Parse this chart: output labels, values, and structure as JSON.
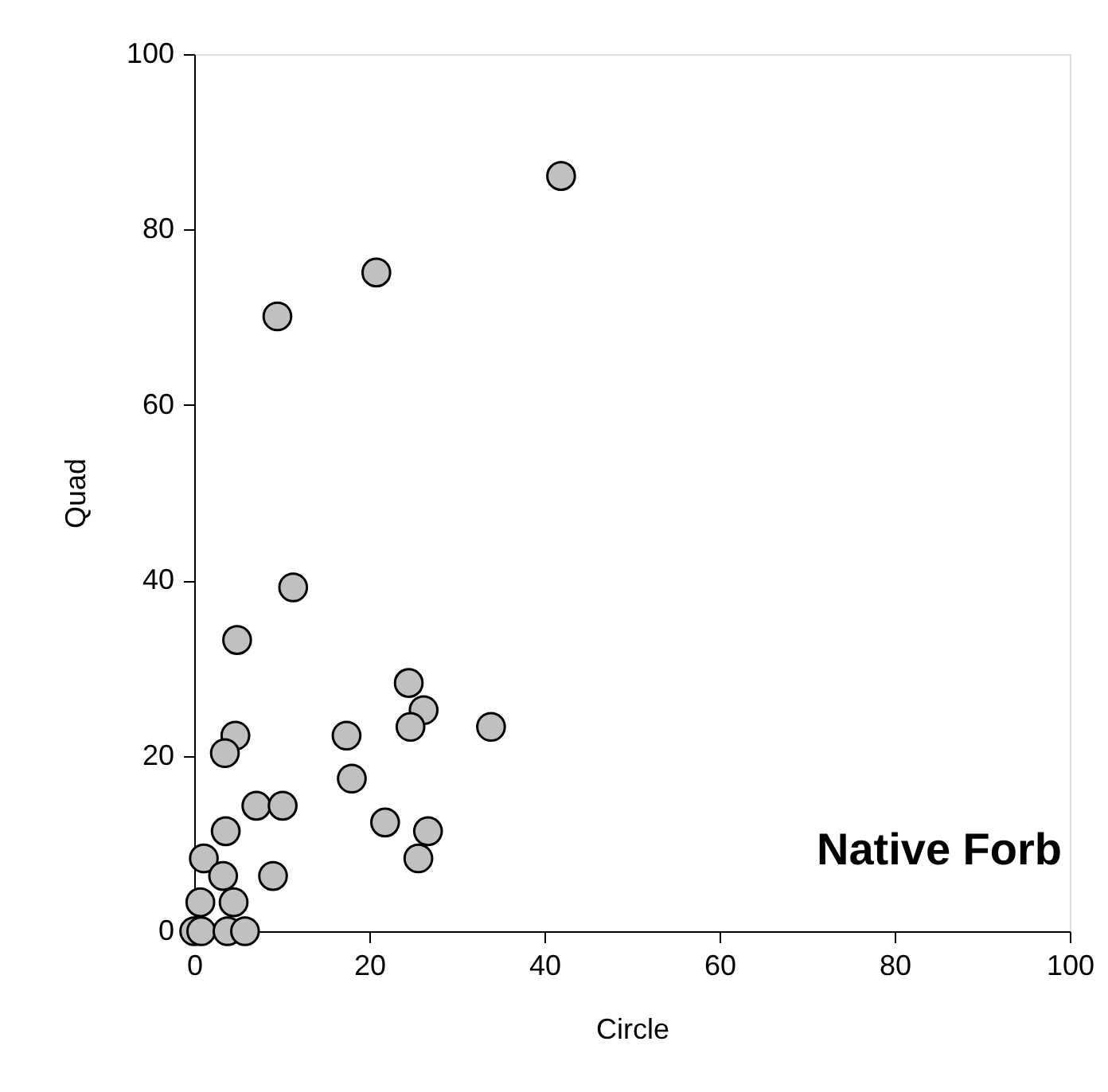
{
  "chart_data": {
    "type": "scatter",
    "xlabel": "Circle",
    "ylabel": "Quad",
    "annotations": [
      "Native Forb"
    ],
    "xlim": [
      0,
      100
    ],
    "ylim": [
      0,
      100
    ],
    "xticks": [
      0,
      20,
      40,
      60,
      80,
      100
    ],
    "yticks": [
      0,
      20,
      40,
      60,
      80,
      100
    ],
    "grid": false,
    "marker": "circle",
    "series": [
      {
        "color": "#c0c0c0",
        "x": [
          41.9,
          20.8,
          9.5,
          11.3,
          4.9,
          4.7,
          3.5,
          7.1,
          10.1,
          3.6,
          17.4,
          18,
          21.8,
          26.7,
          25.6,
          24.5,
          26.2,
          24.7,
          33.9,
          1.1,
          3.3,
          9.0,
          0.7,
          4.5,
          0,
          0.8,
          3.8,
          5.8
        ],
        "values": [
          86.1,
          75.1,
          70.1,
          39.2,
          33.2,
          22.3,
          20.3,
          14.3,
          14.3,
          11.4,
          22.3,
          17.4,
          12.4,
          11.4,
          8.3,
          28.3,
          25.2,
          23.3,
          23.3,
          8.3,
          6.3,
          6.3,
          3.3,
          3.3,
          0,
          0,
          0,
          0
        ]
      }
    ]
  }
}
